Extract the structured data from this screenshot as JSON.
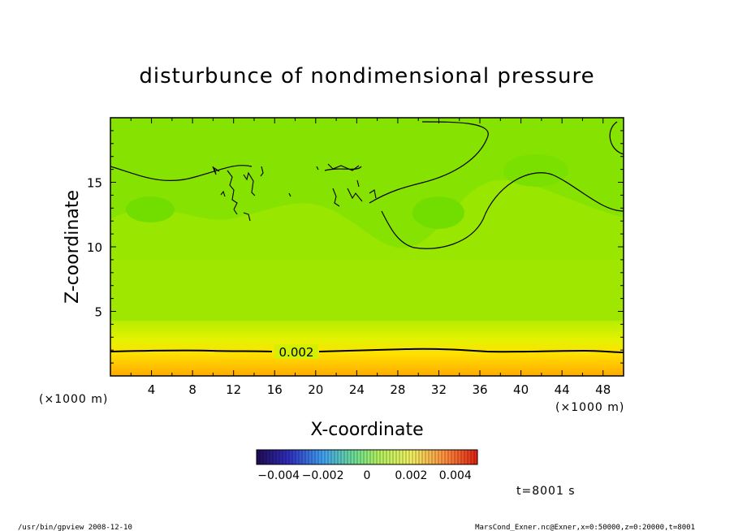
{
  "chart_data": {
    "type": "heatmap",
    "title": "disturbunce of nondimensional pressure",
    "xlabel": "X-coordinate",
    "ylabel": "Z-coordinate",
    "x_unit_label": "(×1000 m)",
    "y_unit_label": "(×1000 m)",
    "xlim": [
      0,
      50
    ],
    "ylim": [
      0,
      20
    ],
    "x_ticks": [
      "4",
      "8",
      "12",
      "16",
      "20",
      "24",
      "28",
      "32",
      "36",
      "40",
      "44",
      "48"
    ],
    "y_ticks": [
      "5",
      "10",
      "15"
    ],
    "contour_label": "0.002",
    "colorbar": {
      "range": [
        -0.005,
        0.005
      ],
      "tick_labels": [
        "−0.004",
        "−0.002",
        "0",
        "0.002",
        "0.004"
      ],
      "low_color": "#1a1060",
      "mid_color": "#a0e060",
      "high_color": "#e04020"
    },
    "field_colors": {
      "background": "#99e600",
      "upper_band": "#80e000",
      "lower_yellow": "#d8f000",
      "bottom_orange": "#ffb000"
    },
    "time_label": "t=8001 s"
  },
  "footer": {
    "left": "/usr/bin/gpview   2008-12-10",
    "right": "MarsCond_Exner.nc@Exner,x=0:50000,z=0:20000,t=8001"
  }
}
